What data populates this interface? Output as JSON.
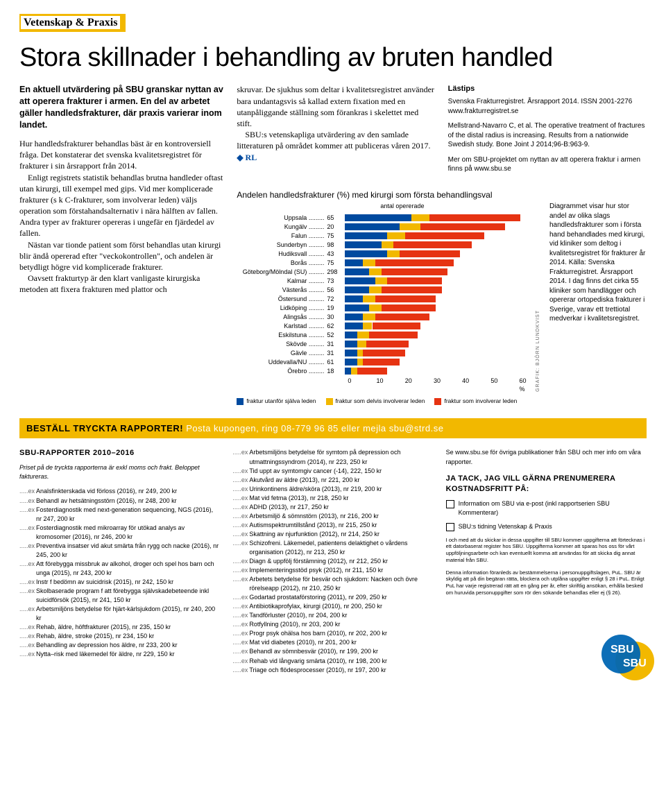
{
  "header": {
    "brand": "Vetenskap & Praxis"
  },
  "title": "Stora skillnader i behandling av bruten handled",
  "col1": {
    "lead": "En aktuell utvärdering på SBU granskar nyttan av att operera frakturer i armen. En del av arbetet gäller handledsfrakturer, där praxis varierar inom landet.",
    "p1": "Hur handledsfrakturer behandlas bäst är en kontroversiell fråga. Det konstaterar det svenska kvalitetsregistret för frakturer i sin årsrapport från 2014.",
    "p2": "Enligt registrets statistik behandlas brutna handleder oftast utan kirurgi, till exempel med gips. Vid mer komplicerade frakturer (s k C-frakturer, som involverar leden) väljs operation som förstahandsalternativ i nära hälften av fallen. Andra typer av frakturer opereras i ungefär en fjärdedel av fallen.",
    "p3": "Nästan var tionde patient som först behandlas utan kirurgi blir ändå opererad efter \"veckokontrollen\", och andelen är betydligt högre vid komplicerade frakturer.",
    "p4": "Oavsett frakturtyp är den klart vanligaste kirurgiska metoden att fixera frakturen med plattor och"
  },
  "col2": {
    "p1": "skruvar. De sjukhus som deltar i kvalitetsregistret använder bara undantagsvis så kallad extern fixation med en utanpåliggande ställning som förankras i skelettet med stift.",
    "p2": "SBU:s vetenskapliga utvärdering av den samlade litteraturen på området kommer att publiceras våren 2017.",
    "rl": "◆ RL"
  },
  "col3": {
    "tips_title": "Lästips",
    "p1": "Svenska Frakturregistret. Årsrapport 2014. ISSN 2001-2276 www.frakturregistret.se",
    "p2": "Mellstrand-Navarro C, et al. The operative treatment of fractures of the distal radius is increasing. Results from a nationwide Swedish study. Bone Joint J 2014;96-B:963-9.",
    "p3": "Mer om SBU-projektet om nyttan av att operera fraktur i armen finns på www.sbu.se"
  },
  "chart": {
    "title": "Andelen handledsfrakturer (%) med kirurgi som första behandlingsval",
    "subtitle": "antal opererade",
    "xmax": 60,
    "xticks": [
      "0",
      "10",
      "20",
      "30",
      "40",
      "50",
      "60 %"
    ],
    "colors": {
      "a": "#004a9f",
      "b": "#f2b800",
      "c": "#e63312"
    },
    "rows": [
      {
        "label": "Uppsala",
        "val": 65,
        "a": 22,
        "b": 6,
        "c": 30
      },
      {
        "label": "Kungälv",
        "val": 20,
        "a": 18,
        "b": 7,
        "c": 28
      },
      {
        "label": "Falun",
        "val": 75,
        "a": 14,
        "b": 6,
        "c": 26
      },
      {
        "label": "Sunderbyn",
        "val": 98,
        "a": 12,
        "b": 4,
        "c": 26
      },
      {
        "label": "Hudiksvall",
        "val": 43,
        "a": 14,
        "b": 4,
        "c": 20
      },
      {
        "label": "Borås",
        "val": 75,
        "a": 6,
        "b": 4,
        "c": 26
      },
      {
        "label": "Göteborg/Mölndal (SU)",
        "val": 298,
        "a": 8,
        "b": 4,
        "c": 22
      },
      {
        "label": "Kalmar",
        "val": 73,
        "a": 10,
        "b": 4,
        "c": 18
      },
      {
        "label": "Västerås",
        "val": 56,
        "a": 8,
        "b": 4,
        "c": 20
      },
      {
        "label": "Östersund",
        "val": 72,
        "a": 6,
        "b": 4,
        "c": 20
      },
      {
        "label": "Lidköping",
        "val": 19,
        "a": 8,
        "b": 4,
        "c": 18
      },
      {
        "label": "Alingsås",
        "val": 30,
        "a": 6,
        "b": 4,
        "c": 18
      },
      {
        "label": "Karlstad",
        "val": 62,
        "a": 6,
        "b": 3,
        "c": 16
      },
      {
        "label": "Eskilstuna",
        "val": 52,
        "a": 4,
        "b": 4,
        "c": 16
      },
      {
        "label": "Skövde",
        "val": 31,
        "a": 4,
        "b": 3,
        "c": 14
      },
      {
        "label": "Gävle",
        "val": 31,
        "a": 4,
        "b": 2,
        "c": 14
      },
      {
        "label": "Uddevalla/NU",
        "val": 61,
        "a": 4,
        "b": 2,
        "c": 12
      },
      {
        "label": "Örebro",
        "val": 18,
        "a": 2,
        "b": 2,
        "c": 10
      }
    ],
    "legend": {
      "a": "fraktur utanför själva leden",
      "b": "fraktur som delvis involverar leden",
      "c": "fraktur som involverar leden"
    },
    "credit": "GRAFIK: BJÖRN LUNDKVIST",
    "caption": "Diagrammet visar hur stor andel av olika slags handledsfrakturer som i första hand behandlades med kirurgi, vid kliniker som deltog i kvalitetsregistret för frakturer år 2014. Källa: Svenska Frakturregistret. Årsrapport 2014. I dag finns det cirka 55 kliniker som handlägger och opererar ortopediska frakturer i Sverige, varav ett trettiotal medverkar i kvalitetsregistret."
  },
  "band": {
    "left": "BESTÄLL TRYCKTA RAPPORTER!",
    "right": "Posta kupongen, ring 08-779 96 85 eller mejla sbu@strd.se"
  },
  "order": {
    "heading": "SBU-RAPPORTER 2010–2016",
    "note": "Priset på de tryckta rapporterna är exkl moms och frakt. Beloppet faktureras.",
    "prefix": ".....ex  ",
    "list1": [
      "Analsfinkterskada vid förloss (2016), nr 249, 200 kr",
      "Behandl av hetsätningsstörn (2016), nr 248, 200 kr",
      "Fosterdiagnostik med next-generation sequencing, NGS (2016), nr 247, 200 kr",
      "Fosterdiagnostik med mikroarray för utökad analys av kromosomer (2016), nr 246, 200 kr",
      "Preventiva insatser vid akut smärta från rygg och nacke (2016), nr 245, 200 kr",
      "Att förebygga missbruk av alkohol, droger och spel hos barn och unga (2015), nr 243, 200 kr",
      "Instr f bedömn av suicidrisk (2015), nr 242, 150 kr",
      "Skolbaserade program f att förebygga självskadebeteende inkl suicidförsök (2015), nr 241, 150 kr",
      "Arbetsmiljöns betydelse för hjärt-kärlsjukdom (2015), nr 240, 200 kr",
      "Rehab, äldre, höftfrakturer (2015), nr 235, 150 kr",
      "Rehab, äldre, stroke (2015), nr 234, 150 kr",
      "Behandling av depression hos äldre, nr 233, 200 kr",
      "Nytta–risk med läkemedel för äldre, nr 229, 150 kr"
    ],
    "list2": [
      "Arbetsmiljöns betydelse för symtom på depression och utmattningssyndrom (2014), nr 223, 250 kr",
      "Tid uppt av symtomgiv cancer (-14), 222, 150 kr",
      "Akutvård av äldre (2013), nr 221, 200 kr",
      "Urinkontinens äldre/sköra (2013), nr 219, 200 kr",
      "Mat vid fetma (2013), nr 218, 250 kr",
      "ADHD (2013), nr 217, 250 kr",
      "Arbetsmiljö & sömnstörn (2013), nr 216, 200 kr",
      "Autismspektrumtillstånd (2013), nr 215, 250 kr",
      "Skattning av njurfunktion (2012), nr 214, 250 kr",
      "Schizofreni. Läkemedel, patientens delaktighet o vårdens organisation (2012), nr 213, 250 kr",
      "Diagn & uppfölj förstämning (2012), nr 212, 250 kr",
      "Implementeringsstöd psyk (2012), nr 211, 150 kr",
      "Arbetets betydelse för besvär och sjukdom: Nacken och övre rörelseapp (2012), nr 210, 250 kr",
      "Godartad prostataförstoring (2011), nr 209, 250 kr",
      "Antibiotikaprofylax, kirurgi (2010), nr 200, 250 kr",
      "Tandförluster (2010), nr 204, 200 kr",
      "Rotfyllning (2010), nr 203, 200 kr",
      "Progr psyk ohälsa hos barn (2010), nr 202, 200 kr",
      "Mat vid diabetes (2010), nr 201, 200 kr",
      "Behandl av sömnbesvär (2010), nr 199, 200 kr",
      "Rehab vid långvarig smärta (2010), nr 198, 200 kr",
      "Triage och flödesprocesser (2010), nr 197, 200 kr"
    ]
  },
  "col3order": {
    "line1": "Se www.sbu.se för övriga publikationer från SBU och mer info om våra rapporter.",
    "h2": "JA TACK, JAG VILL GÄRNA PRENUMERERA KOSTNADSFRITT PÅ:",
    "cb1": "Information om SBU via e-post (inkl rapportserien SBU Kommenterar)",
    "cb2": "SBU:s tidning Vetenskap & Praxis",
    "fine1": "I och med att du skickar in dessa uppgifter till SBU kommer uppgifterna att förtecknas i ett datorbaserat register hos SBU. Uppgifterna kommer att sparas hos oss för vårt uppföljningsarbete och kan eventuellt komma att användas för att skicka dig annat material från SBU.",
    "fine2": "Denna information föranleds av bestämmelserna i personuppgiftslagen, PuL. SBU är skyldig att på din begäran rätta, blockera och utplåna uppgifter enligt § 28 i PuL. Enligt PuL har varje registrerad rätt att en gång per år, efter skriftlig ansökan, erhålla besked om huruvida personuppgifter som rör den sökande behandlas eller ej (§ 26)."
  }
}
